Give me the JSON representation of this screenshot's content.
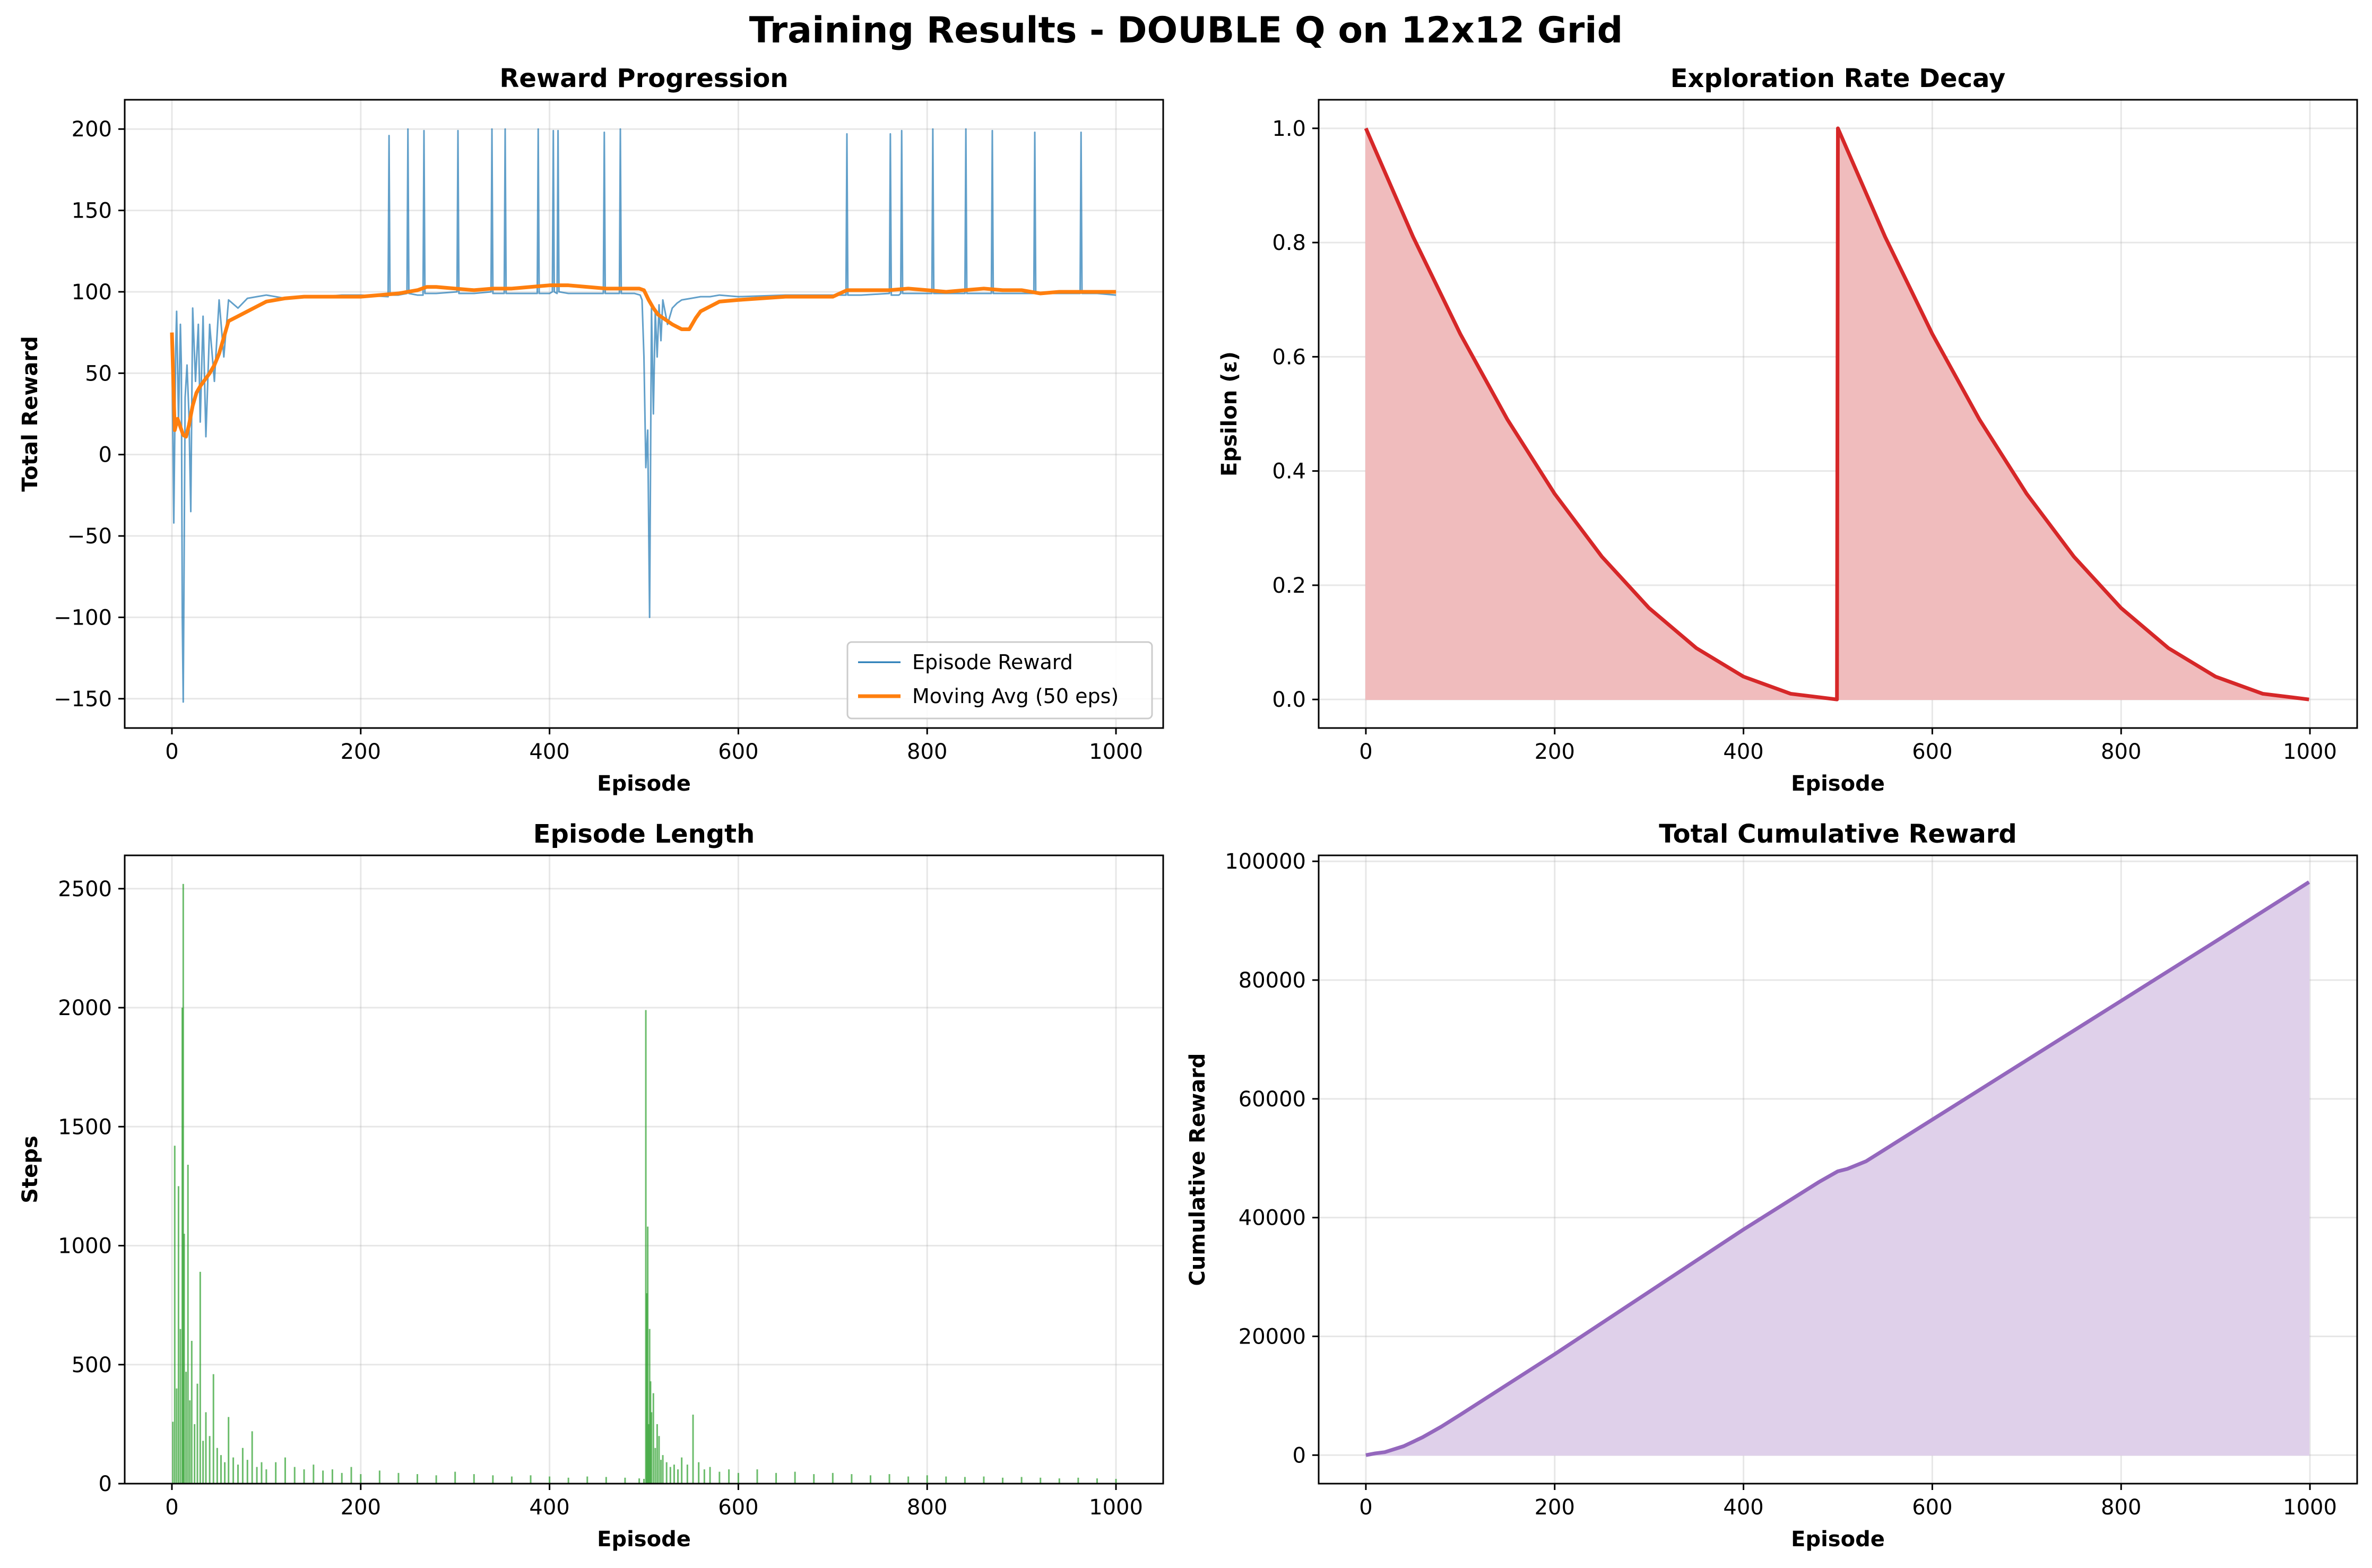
{
  "suptitle": "Training Results - DOUBLE Q on 12x12 Grid",
  "chart_data": [
    {
      "id": "reward",
      "type": "line",
      "title": "Reward Progression",
      "xlabel": "Episode",
      "ylabel": "Total Reward",
      "xlim": [
        -50,
        1050
      ],
      "ylim": [
        -168,
        218
      ],
      "xticks": [
        0,
        200,
        400,
        600,
        800,
        1000
      ],
      "yticks": [
        -150,
        -100,
        -50,
        0,
        50,
        100,
        150,
        200
      ],
      "ytick_labels": [
        "−150",
        "−100",
        "−50",
        "0",
        "50",
        "100",
        "150",
        "200"
      ],
      "grid": true,
      "legend_position": "lower right",
      "series": [
        {
          "name": "Episode Reward",
          "color": "#1f77b4",
          "style": "thin-line",
          "x": [
            0,
            2,
            4,
            5,
            7,
            9,
            10,
            11,
            12,
            14,
            16,
            18,
            20,
            22,
            25,
            28,
            30,
            33,
            36,
            40,
            45,
            50,
            55,
            60,
            70,
            80,
            90,
            100,
            120,
            140,
            160,
            180,
            200,
            229,
            230,
            231,
            240,
            249,
            250,
            251,
            260,
            266,
            267,
            268,
            280,
            302,
            303,
            304,
            320,
            338,
            339,
            340,
            350,
            352,
            353,
            354,
            370,
            387,
            388,
            389,
            400,
            403,
            404,
            405,
            408,
            409,
            410,
            420,
            457,
            458,
            459,
            470,
            474,
            475,
            476,
            490,
            496,
            498,
            500,
            502,
            504,
            506,
            508,
            510,
            512,
            514,
            516,
            518,
            520,
            525,
            530,
            535,
            540,
            550,
            560,
            570,
            580,
            600,
            650,
            700,
            713,
            714,
            715,
            716,
            730,
            760,
            761,
            762,
            770,
            772,
            773,
            774,
            790,
            805,
            806,
            807,
            830,
            840,
            841,
            842,
            850,
            868,
            869,
            870,
            890,
            913,
            914,
            915,
            940,
            962,
            963,
            964,
            980,
            1000
          ],
          "y": [
            70,
            -42,
            65,
            88,
            20,
            80,
            55,
            -100,
            -152,
            35,
            55,
            25,
            -35,
            90,
            45,
            80,
            20,
            85,
            11,
            80,
            45,
            95,
            60,
            95,
            90,
            96,
            97,
            98,
            96,
            97,
            97,
            98,
            98,
            97,
            196,
            98,
            98,
            99,
            200,
            99,
            98,
            98,
            199,
            99,
            99,
            100,
            199,
            99,
            99,
            100,
            200,
            99,
            99,
            99,
            200,
            99,
            99,
            99,
            200,
            99,
            99,
            100,
            199,
            100,
            99,
            199,
            100,
            99,
            99,
            198,
            99,
            99,
            99,
            200,
            99,
            99,
            98,
            95,
            60,
            -8,
            15,
            -100,
            90,
            25,
            88,
            60,
            92,
            70,
            95,
            80,
            90,
            93,
            95,
            96,
            97,
            97,
            98,
            97,
            98,
            98,
            98,
            98,
            197,
            98,
            98,
            99,
            197,
            98,
            98,
            99,
            199,
            99,
            99,
            99,
            200,
            99,
            99,
            99,
            200,
            99,
            99,
            99,
            199,
            99,
            99,
            99,
            198,
            99,
            99,
            99,
            198,
            99,
            99,
            98
          ]
        },
        {
          "name": "Moving Avg (50 eps)",
          "color": "#ff7f0e",
          "style": "thick-line",
          "x": [
            0,
            3,
            6,
            9,
            12,
            15,
            18,
            22,
            26,
            30,
            35,
            40,
            45,
            50,
            55,
            60,
            70,
            80,
            90,
            100,
            120,
            140,
            160,
            180,
            200,
            220,
            240,
            260,
            270,
            280,
            300,
            320,
            340,
            360,
            380,
            400,
            420,
            440,
            460,
            480,
            495,
            500,
            505,
            510,
            515,
            520,
            525,
            530,
            540,
            548,
            555,
            560,
            570,
            580,
            600,
            650,
            700,
            715,
            730,
            760,
            780,
            800,
            820,
            840,
            860,
            880,
            900,
            920,
            940,
            960,
            980,
            1000
          ],
          "y": [
            75,
            15,
            22,
            17,
            12,
            11,
            18,
            30,
            38,
            42,
            46,
            50,
            55,
            62,
            72,
            82,
            85,
            88,
            91,
            94,
            96,
            97,
            97,
            97,
            97,
            98,
            99,
            101,
            103,
            103,
            102,
            101,
            102,
            102,
            103,
            104,
            104,
            103,
            102,
            102,
            102,
            101,
            95,
            90,
            86,
            84,
            82,
            80,
            77,
            77,
            84,
            88,
            91,
            94,
            95,
            97,
            97,
            101,
            101,
            101,
            102,
            101,
            100,
            101,
            102,
            101,
            101,
            99,
            100,
            100,
            100,
            100
          ]
        }
      ]
    },
    {
      "id": "epsilon",
      "type": "area",
      "title": "Exploration Rate Decay",
      "xlabel": "Episode",
      "ylabel": "Epsilon (ε)",
      "xlim": [
        -50,
        1050
      ],
      "ylim": [
        -0.05,
        1.05
      ],
      "xticks": [
        0,
        200,
        400,
        600,
        800,
        1000
      ],
      "yticks": [
        0.0,
        0.2,
        0.4,
        0.6,
        0.8,
        1.0
      ],
      "ytick_labels": [
        "0.0",
        "0.2",
        "0.4",
        "0.6",
        "0.8",
        "1.0"
      ],
      "grid": true,
      "series": [
        {
          "color": "#d62728",
          "fill": "#f0bcbd",
          "x": [
            0,
            50,
            100,
            150,
            200,
            250,
            300,
            350,
            400,
            450,
            499,
            500,
            550,
            600,
            650,
            700,
            750,
            800,
            850,
            900,
            950,
            999
          ],
          "y": [
            1.0,
            0.81,
            0.64,
            0.49,
            0.36,
            0.25,
            0.16,
            0.09,
            0.04,
            0.01,
            0.0,
            1.0,
            0.81,
            0.64,
            0.49,
            0.36,
            0.25,
            0.16,
            0.09,
            0.04,
            0.01,
            0.0
          ]
        }
      ]
    },
    {
      "id": "length",
      "type": "bar",
      "title": "Episode Length",
      "xlabel": "Episode",
      "ylabel": "Steps",
      "xlim": [
        -50,
        1050
      ],
      "ylim": [
        0,
        2640
      ],
      "xticks": [
        0,
        200,
        400,
        600,
        800,
        1000
      ],
      "yticks": [
        0,
        500,
        1000,
        1500,
        2000,
        2500
      ],
      "ytick_labels": [
        "0",
        "500",
        "1000",
        "1500",
        "2000",
        "2500"
      ],
      "grid": true,
      "series": [
        {
          "color": "#2ca02c",
          "x": [
            1,
            3,
            5,
            7,
            9,
            11,
            12,
            13,
            15,
            17,
            19,
            21,
            24,
            27,
            30,
            33,
            36,
            40,
            44,
            48,
            52,
            56,
            60,
            65,
            70,
            75,
            80,
            85,
            90,
            95,
            100,
            110,
            120,
            130,
            140,
            150,
            160,
            170,
            180,
            190,
            200,
            220,
            240,
            260,
            280,
            300,
            320,
            340,
            360,
            380,
            400,
            420,
            440,
            460,
            480,
            495,
            500,
            502,
            503,
            504,
            505,
            506,
            507,
            508,
            510,
            512,
            514,
            516,
            518,
            520,
            524,
            528,
            532,
            536,
            540,
            546,
            552,
            558,
            564,
            570,
            580,
            590,
            600,
            620,
            640,
            660,
            680,
            700,
            720,
            740,
            760,
            780,
            800,
            820,
            840,
            860,
            880,
            900,
            920,
            940,
            960,
            980,
            1000
          ],
          "y": [
            260,
            1420,
            400,
            1250,
            650,
            2000,
            2520,
            1050,
            470,
            1340,
            350,
            600,
            250,
            420,
            890,
            180,
            300,
            200,
            460,
            150,
            120,
            90,
            280,
            110,
            80,
            150,
            100,
            220,
            70,
            90,
            60,
            90,
            110,
            70,
            60,
            80,
            55,
            60,
            45,
            70,
            40,
            55,
            45,
            40,
            35,
            50,
            40,
            35,
            30,
            35,
            30,
            25,
            30,
            28,
            25,
            22,
            20,
            1990,
            800,
            1080,
            250,
            650,
            430,
            300,
            380,
            150,
            250,
            200,
            100,
            120,
            90,
            70,
            80,
            60,
            110,
            80,
            290,
            90,
            60,
            70,
            50,
            60,
            45,
            60,
            45,
            50,
            40,
            45,
            40,
            35,
            40,
            30,
            35,
            30,
            28,
            30,
            25,
            28,
            25,
            22,
            25,
            22,
            20
          ]
        }
      ]
    },
    {
      "id": "cumulative",
      "type": "area",
      "title": "Total Cumulative Reward",
      "xlabel": "Episode",
      "ylabel": "Cumulative Reward",
      "xlim": [
        -50,
        1050
      ],
      "ylim": [
        -4800,
        101000
      ],
      "xticks": [
        0,
        200,
        400,
        600,
        800,
        1000
      ],
      "yticks": [
        0,
        20000,
        40000,
        60000,
        80000,
        100000
      ],
      "ytick_labels": [
        "0",
        "20000",
        "40000",
        "60000",
        "80000",
        "100000"
      ],
      "grid": true,
      "series": [
        {
          "color": "#9467bd",
          "fill": "#dfd0ea",
          "x": [
            0,
            10,
            20,
            40,
            60,
            80,
            100,
            200,
            300,
            400,
            480,
            500,
            510,
            530,
            560,
            600,
            700,
            800,
            900,
            999
          ],
          "y": [
            0,
            300,
            500,
            1500,
            3000,
            4800,
            6800,
            17000,
            27500,
            38000,
            46000,
            47800,
            48200,
            49500,
            52500,
            56500,
            66500,
            76500,
            86500,
            96500
          ]
        }
      ]
    }
  ]
}
